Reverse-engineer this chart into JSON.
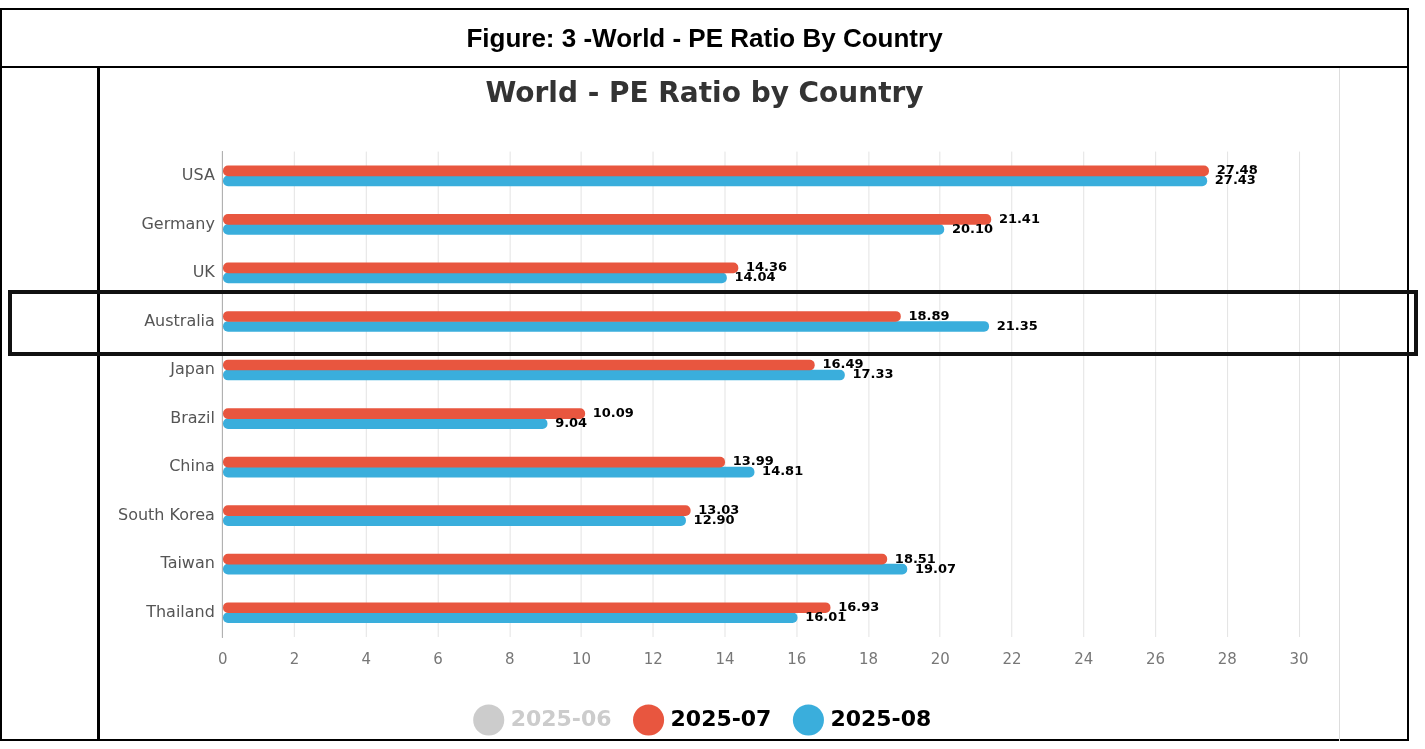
{
  "chart_data": {
    "type": "bar",
    "orientation": "horizontal",
    "title": "Figure: 3 -World - PE Ratio By Country",
    "subtitle": "World - PE Ratio by Country",
    "categories": [
      "USA",
      "Germany",
      "UK",
      "Australia",
      "Japan",
      "Brazil",
      "China",
      "South Korea",
      "Taiwan",
      "Thailand"
    ],
    "series": [
      {
        "name": "2025-06",
        "color": "#cccccc",
        "values": [
          null,
          null,
          null,
          null,
          null,
          null,
          null,
          null,
          null,
          null
        ]
      },
      {
        "name": "2025-07",
        "color": "#e8563f",
        "values": [
          27.48,
          21.41,
          14.36,
          18.89,
          16.49,
          10.09,
          13.99,
          13.03,
          18.51,
          16.93
        ],
        "value_labels": [
          "27.48",
          "21.41",
          "14.36",
          "18.89",
          "16.49",
          "10.09",
          "13.99",
          "13.03",
          "18.51",
          "16.93"
        ]
      },
      {
        "name": "2025-08",
        "color": "#3aaedc",
        "values": [
          27.43,
          20.1,
          14.04,
          21.35,
          17.33,
          9.04,
          14.81,
          12.9,
          19.07,
          16.01
        ],
        "value_labels": [
          "27.43",
          "20.10",
          "14.04",
          "21.35",
          "17.33",
          "9.04",
          "14.81",
          "12.90",
          "19.07",
          "16.01"
        ]
      }
    ],
    "xlim": [
      0,
      30
    ],
    "xticks": [
      0,
      2,
      4,
      6,
      8,
      10,
      12,
      14,
      16,
      18,
      20,
      22,
      24,
      26,
      28,
      30
    ],
    "grid": "x",
    "legend": "bottom"
  }
}
